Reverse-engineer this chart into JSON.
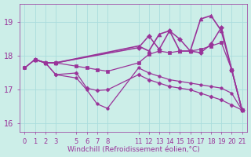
{
  "background_color": "#cceee8",
  "line_color": "#993399",
  "grid_color": "#aadddd",
  "xlabel": "Windchill (Refroidissement éolien,°C)",
  "xlabel_color": "#993399",
  "tick_color": "#993399",
  "xlim": [
    -0.5,
    21.5
  ],
  "ylim": [
    15.75,
    19.55
  ],
  "yticks": [
    16,
    17,
    18,
    19
  ],
  "xticks": [
    0,
    1,
    2,
    3,
    5,
    6,
    7,
    8,
    11,
    12,
    13,
    14,
    15,
    16,
    17,
    18,
    19,
    20,
    21
  ],
  "lines": [
    {
      "x": [
        1,
        2,
        3,
        11,
        12,
        13,
        14,
        15,
        16,
        17,
        18,
        19,
        20,
        21
      ],
      "y": [
        17.9,
        17.8,
        17.8,
        18.3,
        18.15,
        18.65,
        18.75,
        18.15,
        18.15,
        19.1,
        19.2,
        18.75,
        17.6,
        16.4
      ],
      "marker": "^",
      "markersize": 3.5,
      "linewidth": 1.2
    },
    {
      "x": [
        1,
        2,
        3,
        11,
        12,
        13,
        14,
        15,
        16,
        17,
        18,
        19,
        20,
        21
      ],
      "y": [
        17.9,
        17.8,
        17.8,
        18.25,
        18.6,
        18.2,
        18.75,
        18.5,
        18.15,
        18.1,
        18.35,
        18.85,
        17.6,
        16.4
      ],
      "marker": "D",
      "markersize": 3,
      "linewidth": 1.1
    },
    {
      "x": [
        0,
        1,
        2,
        3,
        5,
        6,
        7,
        8,
        11,
        12,
        13,
        14,
        15,
        16,
        17,
        18,
        19,
        20,
        21
      ],
      "y": [
        17.65,
        17.9,
        17.8,
        17.8,
        17.7,
        17.65,
        17.6,
        17.55,
        17.8,
        18.05,
        18.15,
        18.1,
        18.15,
        18.15,
        18.2,
        18.3,
        18.4,
        17.6,
        16.4
      ],
      "marker": "s",
      "markersize": 2.5,
      "linewidth": 0.9
    },
    {
      "x": [
        0,
        1,
        2,
        3,
        5,
        6,
        7,
        8,
        11,
        12,
        13,
        14,
        15,
        16,
        17,
        18,
        19,
        20,
        21
      ],
      "y": [
        17.65,
        17.9,
        17.8,
        17.45,
        17.5,
        17.05,
        16.98,
        17.0,
        17.45,
        17.3,
        17.2,
        17.1,
        17.05,
        17.0,
        16.9,
        16.8,
        16.7,
        16.55,
        16.4
      ],
      "marker": "D",
      "markersize": 2.5,
      "linewidth": 0.9
    },
    {
      "x": [
        0,
        1,
        2,
        3,
        5,
        6,
        7,
        8,
        11,
        12,
        13,
        14,
        15,
        16,
        17,
        18,
        19,
        20,
        21
      ],
      "y": [
        17.65,
        17.9,
        17.8,
        17.45,
        17.35,
        17.0,
        16.58,
        16.45,
        17.65,
        17.5,
        17.4,
        17.3,
        17.25,
        17.2,
        17.15,
        17.1,
        17.05,
        16.9,
        16.4
      ],
      "marker": "o",
      "markersize": 2.5,
      "linewidth": 0.9
    }
  ]
}
